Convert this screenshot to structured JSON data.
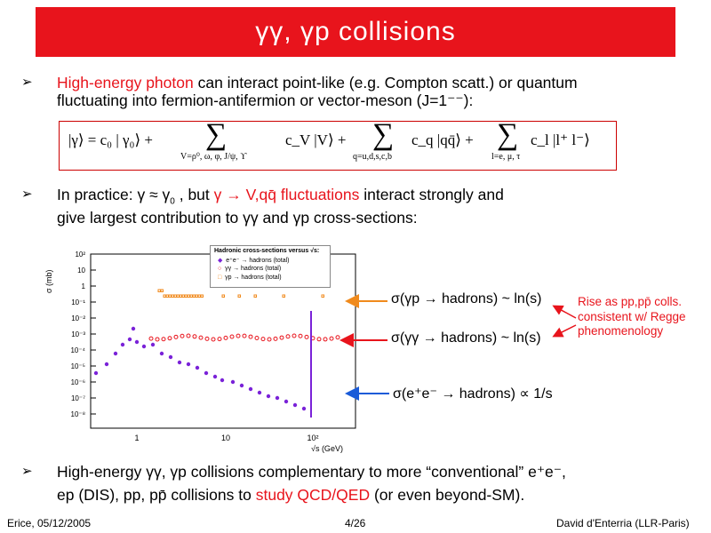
{
  "title": "γγ, γp collisions",
  "bullets": [
    {
      "arrow": "➢",
      "highlight": "High-energy photon",
      "line1_rest": " can interact point-like (e.g. Compton scatt.) or quantum",
      "line2": "fluctuating into fermion-antifermion or vector-meson (J=1⁻⁻):"
    },
    {
      "arrow": "➢",
      "line1_start": "In practice: γ ≈ γ",
      "sub0": "0",
      "line1_mid": " , but ",
      "highlight": "γ → V,qq̄ fluctuations",
      "line1_rest": " interact strongly and",
      "line2": "give largest contribution to γγ and γp cross-sections:"
    },
    {
      "arrow": "➢",
      "line1": "High-energy γγ, γp collisions complementary to more “conventional” e⁺e⁻,",
      "line2_start": "ep (DIS), pp, pp̄ collisions to ",
      "highlight": "study QCD/QED",
      "line2_rest": " (or even beyond-SM)."
    }
  ],
  "equation": {
    "lhs": "|γ⟩ = c₀ | γ₀⟩ +",
    "sum1_term": "c_V |V⟩ +",
    "sum1_range": "V=ρ⁰, ω, φ, J/ψ, ϒ",
    "sum2_term": "c_q |qq̄⟩ +",
    "sum2_range": "q=u,d,s,c,b",
    "sum3_term": "c_l |l⁺ l⁻⟩",
    "sum3_range": "l=e, μ, τ"
  },
  "plot": {
    "ylabel": "σ (mb)",
    "xlabel": "√s (GeV)",
    "yticks": [
      "10²",
      "10",
      "1",
      "10⁻¹",
      "10⁻²",
      "10⁻³",
      "10⁻⁴",
      "10⁻⁵",
      "10⁻⁶",
      "10⁻⁷",
      "10⁻⁸"
    ],
    "xticks": [
      "1",
      "10",
      "10²"
    ],
    "legend_title": "Hadronic cross-sections versus √s:",
    "legend_items": [
      {
        "label": "e⁺e⁻ → hadrons (total)",
        "color": "#7a22d8"
      },
      {
        "label": "γγ → hadrons (total)",
        "color": "#e8141c"
      },
      {
        "label": "γp → hadrons (total)",
        "color": "#f08a1c"
      }
    ]
  },
  "annotations": {
    "gp": "σ(γp → hadrons) ~ ln(s)",
    "gg": "σ(γγ → hadrons) ~ ln(s)",
    "ee": "σ(e⁺e⁻ → hadrons) ∝ 1/s"
  },
  "side_note": {
    "line1": "Rise as pp,pp̄ colls.",
    "line2": "consistent  w/ Regge",
    "line3": "phenomenology"
  },
  "colors": {
    "title_bg": "#e8141c",
    "highlight": "#e8141c",
    "ee": "#7a22d8",
    "gg": "#e8141c",
    "gp": "#f08a1c",
    "arrow_blue": "#1a5bd8"
  },
  "footer": {
    "left": "Erice, 05/12/2005",
    "center": "4/26",
    "right": "David d'Enterria (LLR-Paris)"
  }
}
